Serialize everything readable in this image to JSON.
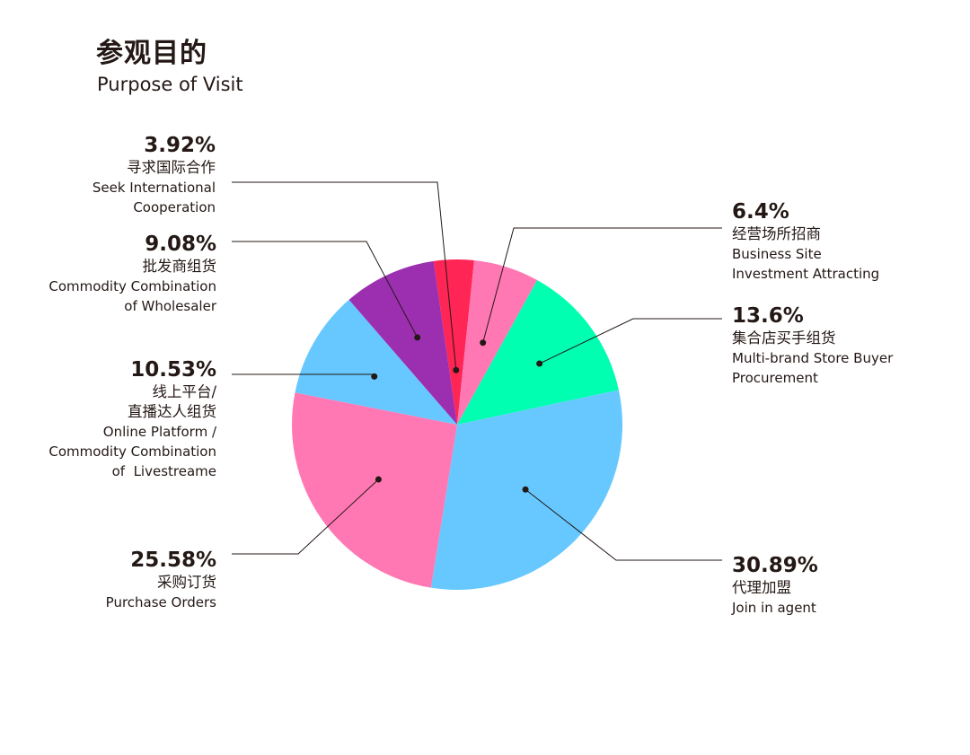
{
  "chart_data": {
    "type": "pie",
    "title": "参观目的",
    "subtitle": "Purpose of Visit",
    "slices": [
      {
        "label_cn": "寻求国际合作",
        "label_en": [
          "Seek International",
          "Cooperation"
        ],
        "value": 3.92,
        "value_label": "3.92%",
        "color": "#ff2554"
      },
      {
        "label_cn": "经营场所招商",
        "label_en": [
          "Business Site",
          "Investment Attracting"
        ],
        "value": 6.4,
        "value_label": "6.4%",
        "color": "#ff78b4"
      },
      {
        "label_cn": "集合店买手组货",
        "label_en": [
          "Multi-brand Store Buyer",
          "Procurement"
        ],
        "value": 13.6,
        "value_label": "13.6%",
        "color": "#00ffb0"
      },
      {
        "label_cn": "代理加盟",
        "label_en": [
          "Join in agent"
        ],
        "value": 30.89,
        "value_label": "30.89%",
        "color": "#66c8ff"
      },
      {
        "label_cn": "采购订货",
        "label_en": [
          "Purchase Orders"
        ],
        "value": 25.58,
        "value_label": "25.58%",
        "color": "#ff78b4"
      },
      {
        "label_cn": "线上平台/\n直播达人组货",
        "label_en": [
          "Online Platform /",
          "Commodity Combination",
          "of  Livestreame"
        ],
        "value": 10.53,
        "value_label": "10.53%",
        "color": "#66c8ff"
      },
      {
        "label_cn": "批发商组货",
        "label_en": [
          "Commodity Combination",
          "of Wholesaler"
        ],
        "value": 9.08,
        "value_label": "9.08%",
        "color": "#9b2fb0"
      }
    ],
    "legend": "none"
  }
}
